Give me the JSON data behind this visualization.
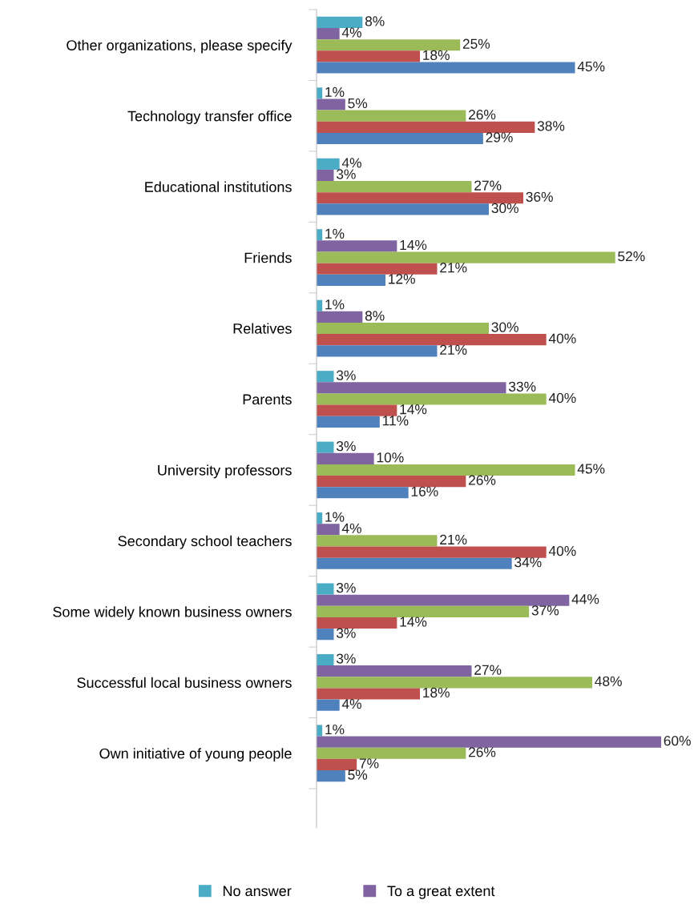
{
  "chart_data": {
    "type": "bar",
    "orientation": "horizontal",
    "legend": "bottom",
    "grid": false,
    "categories": [
      "Other organizations, please specify",
      "Technology transfer office",
      "Educational institutions",
      "Friends",
      "Relatives",
      "Parents",
      "University professors",
      "Secondary school teachers",
      "Some widely known business owners",
      "Successful local business owners",
      "Own initiative of young people"
    ],
    "series": [
      {
        "name": "No answer",
        "color": "#4bacc6",
        "values": [
          8,
          1,
          4,
          1,
          1,
          3,
          3,
          1,
          3,
          3,
          1
        ],
        "value_labels": [
          "8%",
          "1%",
          "4%",
          "1%",
          "1%",
          "3%",
          "3%",
          "1%",
          "3%",
          "3%",
          "1%"
        ]
      },
      {
        "name": "To a great extent",
        "color": "#8064a2",
        "values": [
          4,
          5,
          3,
          14,
          8,
          33,
          10,
          4,
          44,
          27,
          60
        ],
        "value_labels": [
          "4%",
          "5%",
          "3%",
          "14%",
          "8%",
          "33%",
          "10%",
          "4%",
          "44%",
          "27%",
          "60%"
        ]
      },
      {
        "color": "#9bbb59",
        "values": [
          25,
          26,
          27,
          52,
          30,
          40,
          45,
          21,
          37,
          48,
          26
        ],
        "value_labels": [
          "25%",
          "26%",
          "27%",
          "52%",
          "30%",
          "40%",
          "45%",
          "21%",
          "37%",
          "48%",
          "26%"
        ]
      },
      {
        "color": "#c0504d",
        "values": [
          18,
          38,
          36,
          21,
          40,
          14,
          26,
          40,
          14,
          18,
          7
        ],
        "value_labels": [
          "18%",
          "38%",
          "36%",
          "21%",
          "40%",
          "14%",
          "26%",
          "40%",
          "14%",
          "18%",
          "7%"
        ]
      },
      {
        "color": "#4f81bd",
        "values": [
          45,
          29,
          30,
          12,
          21,
          11,
          16,
          34,
          3,
          4,
          5
        ],
        "value_labels": [
          "45%",
          "29%",
          "30%",
          "12%",
          "21%",
          "11%",
          "16%",
          "34%",
          "3%",
          "4%",
          "5%"
        ]
      }
    ]
  }
}
